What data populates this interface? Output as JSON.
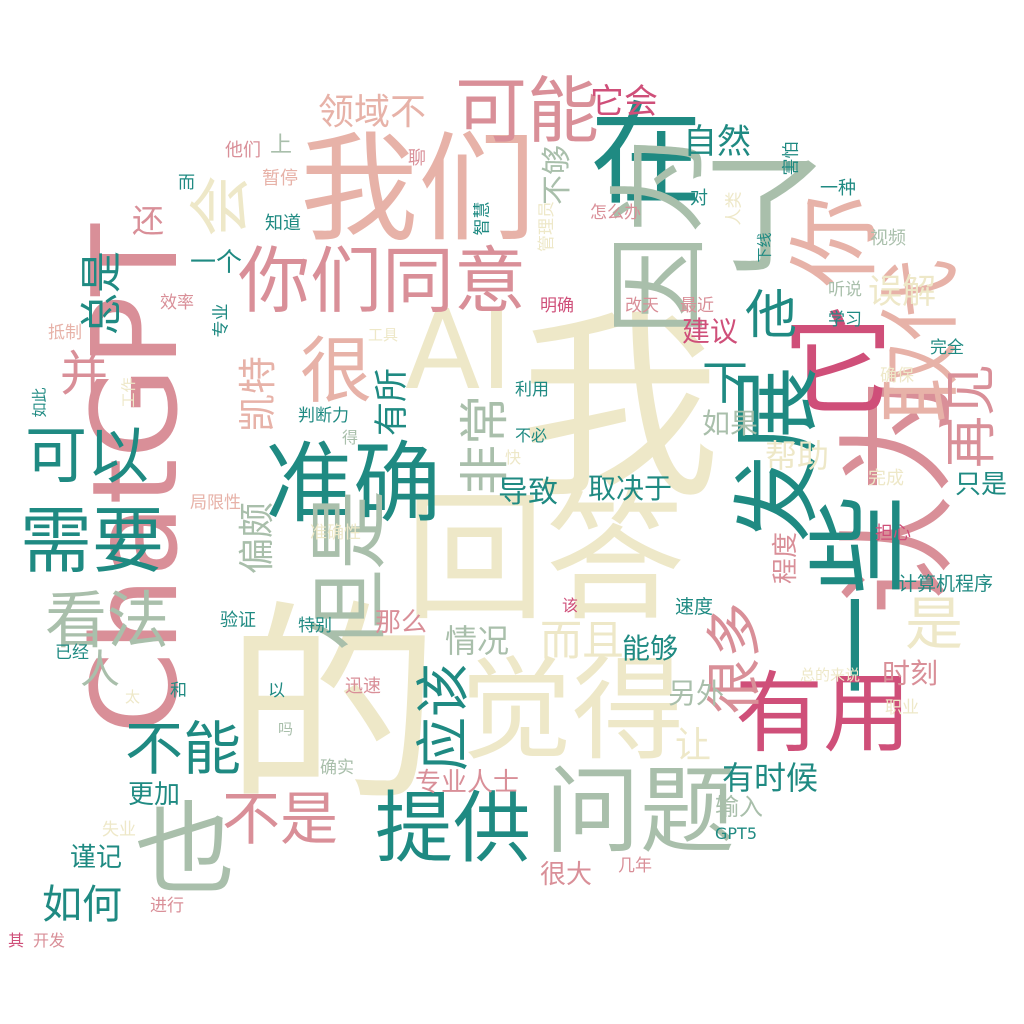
{
  "palette": {
    "teal": "#1f8a82",
    "sage": "#a9bfab",
    "cream": "#eee8c8",
    "rose": "#d98f98",
    "blush": "#e7b2a8",
    "crimson": "#cf4f79"
  },
  "words": [
    {
      "text": "我"
    },
    {
      "text": "的"
    },
    {
      "text": "回答"
    },
    {
      "text": "ChatGPT"
    },
    {
      "text": "我们"
    },
    {
      "text": "认为"
    },
    {
      "text": "觉得"
    },
    {
      "text": "一些"
    },
    {
      "text": "了"
    },
    {
      "text": "它"
    },
    {
      "text": "在"
    },
    {
      "text": "你"
    },
    {
      "text": "AI"
    },
    {
      "text": "因为"
    },
    {
      "text": "取代"
    },
    {
      "text": "发展"
    },
    {
      "text": "准确"
    },
    {
      "text": "问题"
    },
    {
      "text": "提供"
    },
    {
      "text": "也"
    },
    {
      "text": "有用"
    },
    {
      "text": "需要"
    },
    {
      "text": "但是"
    },
    {
      "text": "很"
    },
    {
      "text": "可能"
    },
    {
      "text": "你们同意"
    },
    {
      "text": "会"
    },
    {
      "text": "可以"
    },
    {
      "text": "看法"
    },
    {
      "text": "不能"
    },
    {
      "text": "不是"
    },
    {
      "text": "应该"
    },
    {
      "text": "很多"
    },
    {
      "text": "是"
    },
    {
      "text": "再见"
    },
    {
      "text": "非常"
    },
    {
      "text": "他"
    },
    {
      "text": "下"
    },
    {
      "text": "领域不"
    },
    {
      "text": "并"
    },
    {
      "text": "总是"
    },
    {
      "text": "凯特"
    },
    {
      "text": "偏颇"
    },
    {
      "text": "有所"
    },
    {
      "text": "自然"
    },
    {
      "text": "不够"
    },
    {
      "text": "它会"
    },
    {
      "text": "误解"
    },
    {
      "text": "建议"
    },
    {
      "text": "导致"
    },
    {
      "text": "取决于"
    },
    {
      "text": "帮助"
    },
    {
      "text": "如果"
    },
    {
      "text": "而且"
    },
    {
      "text": "情况"
    },
    {
      "text": "能够"
    },
    {
      "text": "另外"
    },
    {
      "text": "让"
    },
    {
      "text": "有时候"
    },
    {
      "text": "时刻"
    },
    {
      "text": "只是"
    },
    {
      "text": "程度"
    },
    {
      "text": "那么"
    },
    {
      "text": "专业人士"
    },
    {
      "text": "如何"
    },
    {
      "text": "谨记"
    },
    {
      "text": "更加"
    },
    {
      "text": "人"
    },
    {
      "text": "还"
    },
    {
      "text": "一个"
    },
    {
      "text": "很大"
    },
    {
      "text": "输入"
    },
    {
      "text": "计算机程序"
    },
    {
      "text": "速度"
    },
    {
      "text": "完成"
    },
    {
      "text": "担心"
    },
    {
      "text": "确保"
    },
    {
      "text": "完全"
    },
    {
      "text": "学习"
    },
    {
      "text": "听说"
    },
    {
      "text": "视频"
    },
    {
      "text": "一种"
    },
    {
      "text": "害怕"
    },
    {
      "text": "对"
    },
    {
      "text": "人类"
    },
    {
      "text": "下线"
    },
    {
      "text": "最近"
    },
    {
      "text": "改天"
    },
    {
      "text": "明确"
    },
    {
      "text": "怎么办"
    },
    {
      "text": "管理员"
    },
    {
      "text": "智慧"
    },
    {
      "text": "聊"
    },
    {
      "text": "他们"
    },
    {
      "text": "上"
    },
    {
      "text": "暂停"
    },
    {
      "text": "而"
    },
    {
      "text": "知道"
    },
    {
      "text": "效率"
    },
    {
      "text": "专业"
    },
    {
      "text": "抵制"
    },
    {
      "text": "工具"
    },
    {
      "text": "工作"
    },
    {
      "text": "如此"
    },
    {
      "text": "判断力"
    },
    {
      "text": "得"
    },
    {
      "text": "利用"
    },
    {
      "text": "不必"
    },
    {
      "text": "快"
    },
    {
      "text": "局限性"
    },
    {
      "text": "准确性"
    },
    {
      "text": "验证"
    },
    {
      "text": "特别"
    },
    {
      "text": "该"
    },
    {
      "text": "已经"
    },
    {
      "text": "太"
    },
    {
      "text": "和"
    },
    {
      "text": "以"
    },
    {
      "text": "迅速"
    },
    {
      "text": "吗"
    },
    {
      "text": "总的来说"
    },
    {
      "text": "职业"
    },
    {
      "text": "确实"
    },
    {
      "text": "失业"
    },
    {
      "text": "GPT5"
    },
    {
      "text": "几年"
    },
    {
      "text": "进行"
    },
    {
      "text": "其"
    },
    {
      "text": "开发"
    }
  ]
}
